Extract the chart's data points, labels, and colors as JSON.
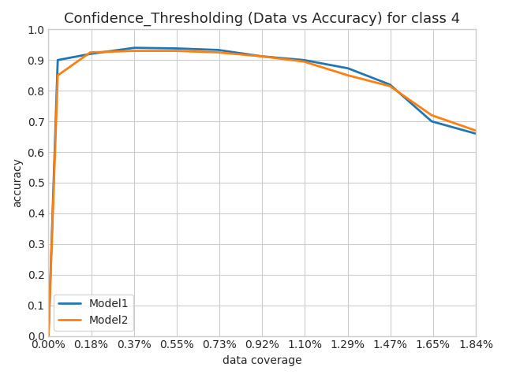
{
  "title": "Confidence_Thresholding (Data vs Accuracy) for class 4",
  "xlabel": "data coverage",
  "ylabel": "accuracy",
  "ylim": [
    0.0,
    1.0
  ],
  "yticks": [
    0.0,
    0.1,
    0.2,
    0.3,
    0.4,
    0.5,
    0.6,
    0.7,
    0.8,
    0.9,
    1.0
  ],
  "xtick_labels": [
    "0.00%",
    "0.18%",
    "0.37%",
    "0.55%",
    "0.73%",
    "0.92%",
    "1.10%",
    "1.29%",
    "1.47%",
    "1.65%",
    "1.84%"
  ],
  "model1_color": "#1f77b4",
  "model2_color": "#ff7f0e",
  "model1_label": "Model1",
  "model2_label": "Model2",
  "model1_x": [
    0.0,
    0.0004,
    0.0018,
    0.0037,
    0.0055,
    0.0073,
    0.0092,
    0.011,
    0.0129,
    0.0147,
    0.0165,
    0.0184
  ],
  "model1_y": [
    0.0,
    0.9,
    0.92,
    0.94,
    0.938,
    0.933,
    0.912,
    0.9,
    0.873,
    0.82,
    0.7,
    0.66
  ],
  "model2_x": [
    0.0,
    0.0004,
    0.0018,
    0.0037,
    0.0055,
    0.0073,
    0.0092,
    0.011,
    0.0129,
    0.0147,
    0.0165,
    0.0184
  ],
  "model2_y": [
    0.0,
    0.85,
    0.925,
    0.93,
    0.93,
    0.925,
    0.912,
    0.895,
    0.85,
    0.815,
    0.72,
    0.67
  ],
  "background_color": "#ffffff",
  "grid_color": "#cccccc",
  "linewidth": 2.0,
  "figsize": [
    6.4,
    4.8
  ],
  "dpi": 100,
  "title_fontsize": 13
}
